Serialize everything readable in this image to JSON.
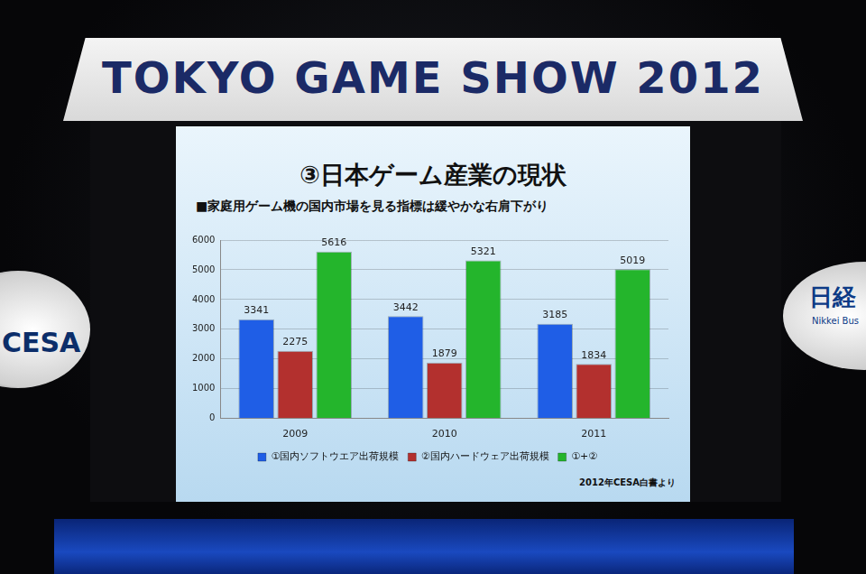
{
  "chart_data": {
    "type": "bar",
    "title": "③日本ゲーム産業の現状",
    "subtitle": "■家庭用ゲーム機の国内市場を見る指標は緩やかな右肩下がり",
    "categories": [
      "2009",
      "2010",
      "2011"
    ],
    "series": [
      {
        "name": "①国内ソフトウエア出荷規模",
        "color": "#1f5ee6",
        "values": [
          3341,
          3442,
          3185
        ]
      },
      {
        "name": "②国内ハードウェア出荷規模",
        "color": "#b3302e",
        "values": [
          2275,
          1879,
          1834
        ]
      },
      {
        "name": "①+②",
        "color": "#24b52c",
        "values": [
          5616,
          5321,
          5019
        ]
      }
    ],
    "ylim": [
      0,
      6000
    ],
    "yticks": [
      0,
      1000,
      2000,
      3000,
      4000,
      5000,
      6000
    ],
    "grid": true,
    "legend": "bottom",
    "data_labels": true,
    "source": "2012年CESA白書より"
  },
  "stage": {
    "banner": "TOKYO GAME SHOW 2012",
    "left_logo": "CESA",
    "right_logo": "日経",
    "right_logo_sub": "Nikkei Bus"
  }
}
